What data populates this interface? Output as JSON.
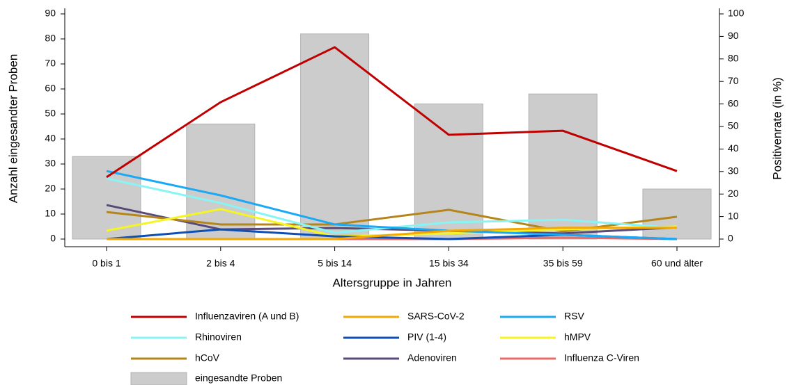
{
  "chart_data": {
    "type": "combo",
    "xlabel": "Altersgruppe in Jahren",
    "ylabel": "Anzahl eingesandter Proben",
    "y2label": "Positivenrate (in %)",
    "categories": [
      "0 bis 1",
      "2 bis 4",
      "5 bis 14",
      "15 bis 34",
      "35 bis 59",
      "60 und älter"
    ],
    "ylim": [
      0,
      90
    ],
    "yticks": [
      0,
      10,
      20,
      30,
      40,
      50,
      60,
      70,
      80,
      90
    ],
    "y2lim": [
      0,
      100
    ],
    "y2ticks": [
      0,
      10,
      20,
      30,
      40,
      50,
      60,
      70,
      80,
      90,
      100
    ],
    "series": [
      {
        "name": "Influenzaviren (A und B)",
        "type": "line",
        "axis": "y2",
        "color": "#c00000",
        "values": [
          27.5,
          60.8,
          85.2,
          46.3,
          48.1,
          30.2
        ]
      },
      {
        "name": "SARS-CoV-2",
        "type": "line",
        "axis": "y2",
        "color": "#f5a800",
        "values": [
          0,
          0,
          0,
          3.7,
          5,
          5
        ]
      },
      {
        "name": "RSV",
        "type": "line",
        "axis": "y2",
        "color": "#19a9f5",
        "values": [
          30.2,
          19.4,
          6.5,
          3.7,
          1.9,
          0
        ]
      },
      {
        "name": "Rhinoviren",
        "type": "line",
        "axis": "y2",
        "color": "#88f5f5",
        "values": [
          26.9,
          16,
          2.8,
          7.4,
          8.6,
          4.9
        ]
      },
      {
        "name": "PIV (1-4)",
        "type": "line",
        "axis": "y2",
        "color": "#0e4fb5",
        "values": [
          0,
          4.3,
          1.2,
          0,
          1.9,
          0
        ]
      },
      {
        "name": "hMPV",
        "type": "line",
        "axis": "y2",
        "color": "#f5f523",
        "values": [
          3.7,
          13.3,
          1.2,
          2.5,
          4.3,
          5.6
        ]
      },
      {
        "name": "hCoV",
        "type": "line",
        "axis": "y2",
        "color": "#b5851a",
        "values": [
          12,
          6.5,
          6.5,
          13,
          3.4,
          9.9
        ]
      },
      {
        "name": "Adenoviren",
        "type": "line",
        "axis": "y2",
        "color": "#5a4a7a",
        "values": [
          15.1,
          4.3,
          4.9,
          3.7,
          2.5,
          5.2
        ]
      },
      {
        "name": "Influenza C-Viren",
        "type": "line",
        "axis": "y2",
        "color": "#e86a6a",
        "values": [
          0,
          0,
          0,
          0,
          0.6,
          0
        ]
      },
      {
        "name": "eingesandte Proben",
        "type": "bar",
        "axis": "y",
        "color": "#cccccc",
        "values": [
          33,
          46,
          82,
          54,
          58,
          20
        ]
      }
    ]
  }
}
